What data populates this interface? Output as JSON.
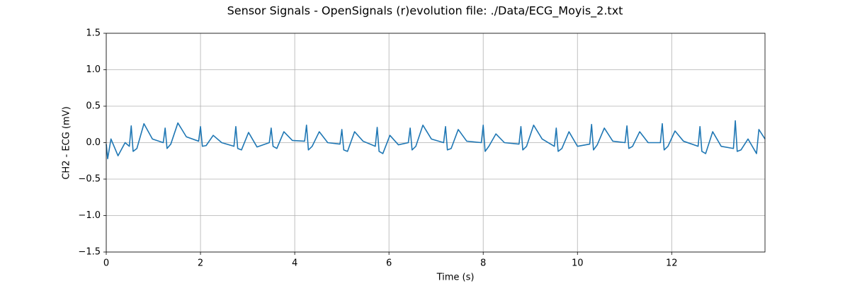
{
  "chart_data": {
    "type": "line",
    "title": "Sensor Signals - OpenSignals (r)evolution file: ./Data/ECG_Moyis_2.txt",
    "x_label": "Time (s)",
    "y_label": "CH2 - ECG (mV)",
    "xlim": [
      0,
      13.98
    ],
    "ylim": [
      -1.5,
      1.5
    ],
    "xticks": [
      0,
      2,
      4,
      6,
      8,
      10,
      12
    ],
    "yticks": [
      {
        "value": -1.5,
        "label": "−1.5"
      },
      {
        "value": -1,
        "label": "−1.0"
      },
      {
        "value": -0.5,
        "label": "−0.5"
      },
      {
        "value": 0,
        "label": "0.0"
      },
      0.5,
      {
        "value": 1,
        "label": "1.0"
      },
      1.5
    ],
    "grid": true,
    "series": [
      {
        "color": "#1f77b4",
        "x": [
          0,
          0.03,
          0.1,
          0.25,
          0.4,
          0.49,
          0.53,
          0.57,
          0.65,
          0.8,
          0.98,
          1.21,
          1.25,
          1.29,
          1.37,
          1.52,
          1.7,
          1.96,
          2.0,
          2.04,
          2.12,
          2.27,
          2.45,
          2.71,
          2.75,
          2.79,
          2.87,
          3.02,
          3.2,
          3.46,
          3.5,
          3.54,
          3.62,
          3.77,
          3.95,
          4.21,
          4.25,
          4.29,
          4.37,
          4.52,
          4.7,
          4.96,
          5.0,
          5.04,
          5.12,
          5.27,
          5.45,
          5.71,
          5.75,
          5.79,
          5.87,
          6.02,
          6.2,
          6.41,
          6.45,
          6.49,
          6.57,
          6.72,
          6.9,
          7.16,
          7.2,
          7.24,
          7.32,
          7.47,
          7.65,
          7.96,
          8.0,
          8.04,
          8.12,
          8.27,
          8.45,
          8.76,
          8.8,
          8.84,
          8.92,
          9.07,
          9.25,
          9.51,
          9.55,
          9.59,
          9.67,
          9.82,
          10.0,
          10.26,
          10.3,
          10.34,
          10.42,
          10.57,
          10.75,
          11.01,
          11.05,
          11.09,
          11.17,
          11.32,
          11.5,
          11.76,
          11.8,
          11.84,
          11.92,
          12.07,
          12.25,
          12.56,
          12.6,
          12.64,
          12.72,
          12.87,
          13.05,
          13.31,
          13.35,
          13.39,
          13.47,
          13.62,
          13.8,
          13.85,
          13.98
        ],
        "values": [
          -0.02,
          -0.22,
          0.05,
          -0.18,
          0.0,
          -0.05,
          0.23,
          -0.12,
          -0.08,
          0.26,
          0.05,
          0.0,
          0.2,
          -0.08,
          -0.02,
          0.27,
          0.08,
          0.02,
          0.22,
          -0.05,
          -0.04,
          0.1,
          0.0,
          -0.05,
          0.22,
          -0.08,
          -0.1,
          0.14,
          -0.06,
          0.0,
          0.2,
          -0.05,
          -0.08,
          0.15,
          0.03,
          0.02,
          0.24,
          -0.1,
          -0.05,
          0.15,
          0.0,
          -0.02,
          0.18,
          -0.1,
          -0.12,
          0.15,
          0.02,
          -0.05,
          0.21,
          -0.12,
          -0.15,
          0.1,
          -0.03,
          0.0,
          0.2,
          -0.1,
          -0.05,
          0.24,
          0.05,
          0.0,
          0.22,
          -0.1,
          -0.08,
          0.18,
          0.02,
          0.0,
          0.24,
          -0.12,
          -0.05,
          0.12,
          0.0,
          -0.02,
          0.22,
          -0.1,
          -0.05,
          0.24,
          0.05,
          -0.05,
          0.2,
          -0.12,
          -0.08,
          0.15,
          -0.05,
          -0.02,
          0.25,
          -0.1,
          -0.03,
          0.2,
          0.02,
          0.0,
          0.23,
          -0.08,
          -0.05,
          0.15,
          0.0,
          0.0,
          0.26,
          -0.1,
          -0.05,
          0.16,
          0.02,
          -0.05,
          0.22,
          -0.12,
          -0.15,
          0.15,
          -0.05,
          -0.08,
          0.3,
          -0.12,
          -0.1,
          0.05,
          -0.15,
          0.18,
          0.05
        ]
      }
    ]
  }
}
